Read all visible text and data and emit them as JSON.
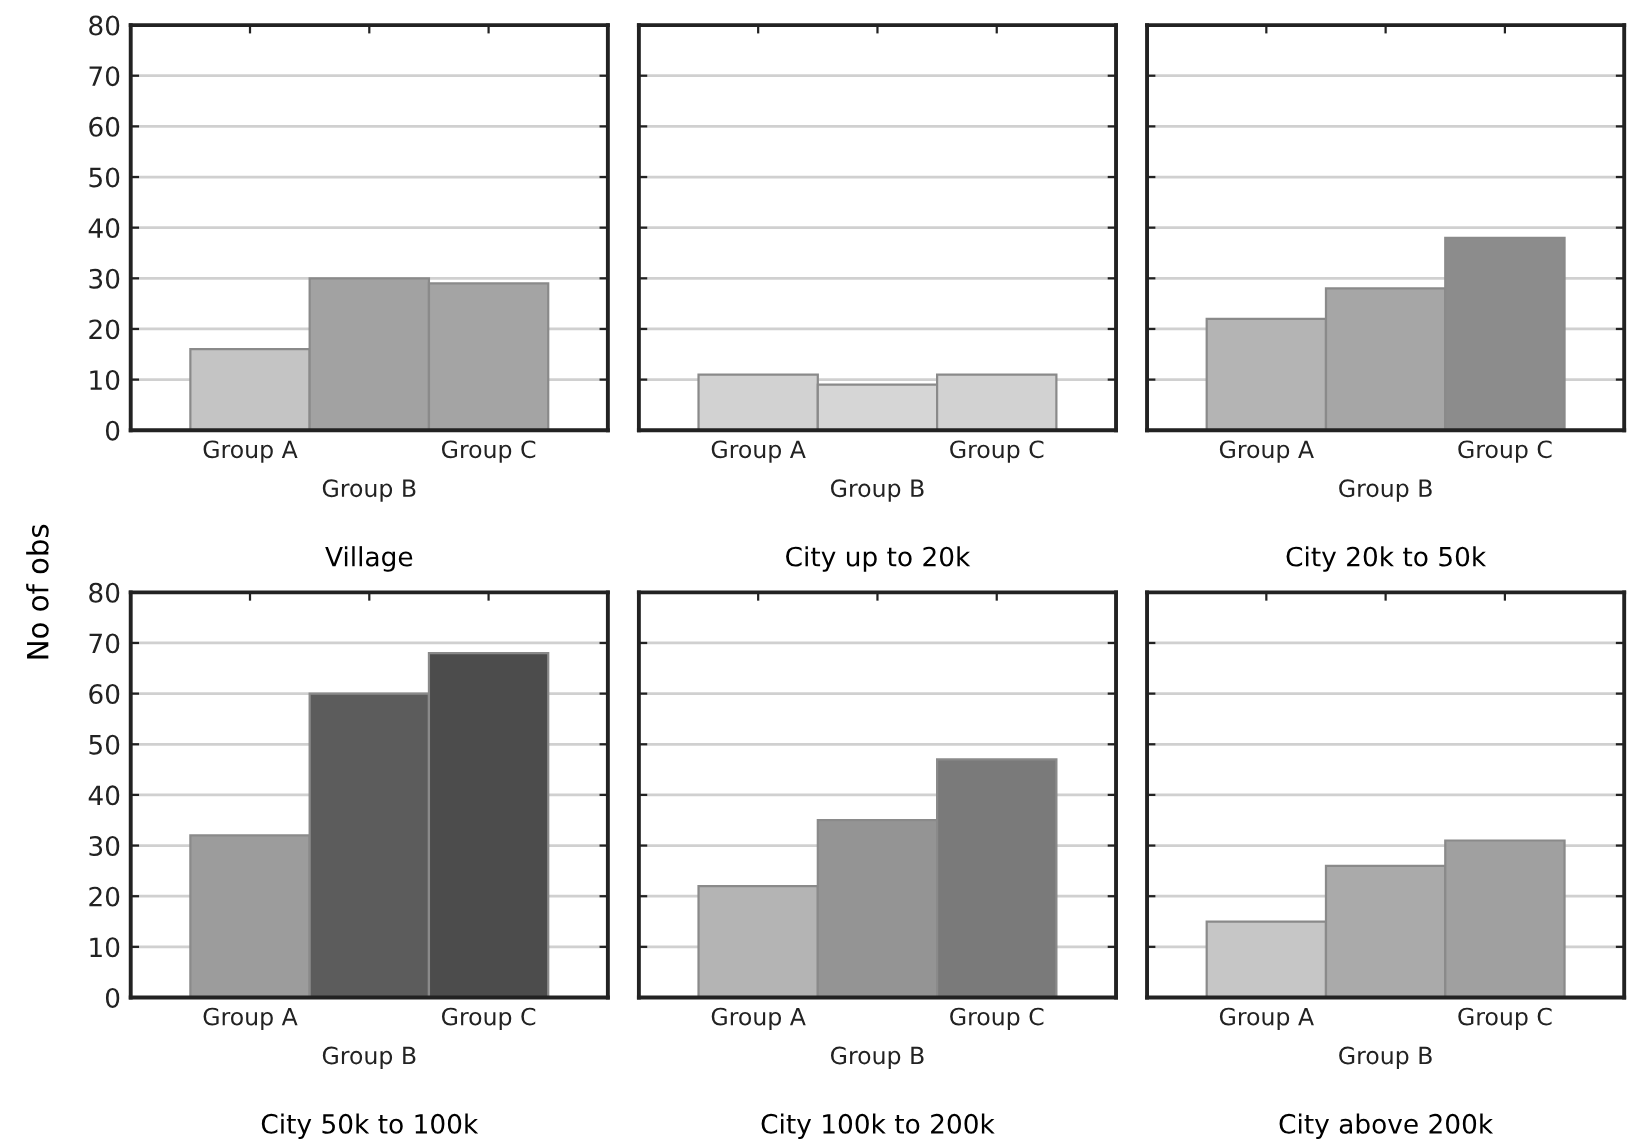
{
  "chart_data": [
    {
      "type": "bar",
      "xlabel": "Village",
      "categories": [
        "Group A",
        "Group B",
        "Group C"
      ],
      "values": [
        16,
        30,
        29
      ],
      "colors": [
        "#c4c4c4",
        "#a2a2a2",
        "#a4a4a4"
      ],
      "ylim": [
        0,
        80
      ],
      "yticks": [
        0,
        10,
        20,
        30,
        40,
        50,
        60,
        70,
        80
      ],
      "grid": "y"
    },
    {
      "type": "bar",
      "xlabel": "City up to 20k",
      "categories": [
        "Group A",
        "Group B",
        "Group C"
      ],
      "values": [
        11,
        9,
        11
      ],
      "colors": [
        "#d2d2d2",
        "#d6d6d6",
        "#d2d2d2"
      ],
      "ylim": [
        0,
        80
      ],
      "yticks": [
        0,
        10,
        20,
        30,
        40,
        50,
        60,
        70,
        80
      ],
      "grid": "y",
      "tick_labels": "x"
    },
    {
      "type": "bar",
      "xlabel": "City 20k to 50k",
      "categories": [
        "Group A",
        "Group B",
        "Group C"
      ],
      "values": [
        22,
        28,
        38
      ],
      "colors": [
        "#b4b4b4",
        "#a6a6a6",
        "#8c8c8c"
      ],
      "ylim": [
        0,
        80
      ],
      "yticks": [
        0,
        10,
        20,
        30,
        40,
        50,
        60,
        70,
        80
      ],
      "grid": "y",
      "tick_labels": "x"
    },
    {
      "type": "bar",
      "xlabel": "City 50k to 100k",
      "ylabel": "No of obs",
      "categories": [
        "Group A",
        "Group B",
        "Group C"
      ],
      "values": [
        32,
        60,
        68
      ],
      "colors": [
        "#9c9c9c",
        "#5c5c5c",
        "#4c4c4c"
      ],
      "ylim": [
        0,
        80
      ],
      "yticks": [
        0,
        10,
        20,
        30,
        40,
        50,
        60,
        70,
        80
      ],
      "grid": "y"
    },
    {
      "type": "bar",
      "xlabel": "City 100k to 200k",
      "categories": [
        "Group A",
        "Group B",
        "Group C"
      ],
      "values": [
        22,
        35,
        47
      ],
      "colors": [
        "#b4b4b4",
        "#949494",
        "#7a7a7a"
      ],
      "ylim": [
        0,
        80
      ],
      "yticks": [
        0,
        10,
        20,
        30,
        40,
        50,
        60,
        70,
        80
      ],
      "grid": "y",
      "tick_labels": "x"
    },
    {
      "type": "bar",
      "xlabel": "City above 200k",
      "categories": [
        "Group A",
        "Group B",
        "Group C"
      ],
      "values": [
        15,
        26,
        31
      ],
      "colors": [
        "#c6c6c6",
        "#aaaaaa",
        "#a0a0a0"
      ],
      "ylim": [
        0,
        80
      ],
      "yticks": [
        0,
        10,
        20,
        30,
        40,
        50,
        60,
        70,
        80
      ],
      "grid": "y",
      "tick_labels": "x"
    }
  ]
}
